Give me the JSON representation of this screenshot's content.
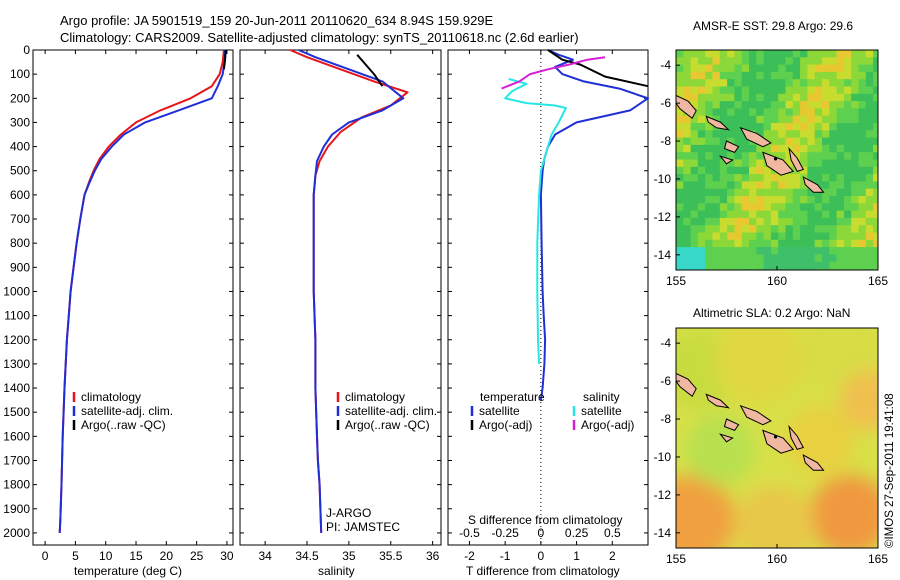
{
  "header": {
    "title_line1": "Argo profile: JA 5901519_159 20-Jun-2011 20110620_634 8.94S 159.929E",
    "title_line2": "Climatology: CARS2009. Satellite-adjusted climatology: synTS_20110618.nc (2.6d earlier)"
  },
  "credit": "©IMOS 27-Sep-2011 19:41:08",
  "colors": {
    "red": "#e8141a",
    "blue": "#1f2fd6",
    "black": "#000000",
    "cyan": "#28e6e6",
    "magenta": "#d620d6"
  },
  "chart_data": [
    {
      "type": "line",
      "id": "temperature",
      "xlabel": "temperature (deg C)",
      "ylabel": "",
      "xlim": [
        -2,
        31
      ],
      "ylim": [
        2050,
        0
      ],
      "xticks": [
        "0",
        "5",
        "10",
        "15",
        "20",
        "25",
        "30"
      ],
      "yticks": [
        "0",
        "100",
        "200",
        "300",
        "400",
        "500",
        "600",
        "700",
        "800",
        "900",
        "1000",
        "1100",
        "1200",
        "1300",
        "1400",
        "1500",
        "1600",
        "1700",
        "1800",
        "1900",
        "2000"
      ],
      "legend": [
        "climatology",
        "satellite-adj. clim.",
        "Argo(..raw -QC)"
      ],
      "legend_position": "lower-right",
      "series": [
        {
          "name": "climatology",
          "color": "red",
          "x": [
            29.5,
            29.3,
            28.8,
            27.5,
            24,
            19,
            15,
            12.5,
            10.5,
            9,
            8,
            7.2,
            6.5,
            5.8,
            5.2,
            4.7,
            4.2,
            3.9,
            3.6,
            3.2,
            2.9,
            2.7,
            2.5,
            2.4
          ],
          "y": [
            0,
            50,
            100,
            150,
            200,
            250,
            300,
            350,
            400,
            450,
            500,
            550,
            600,
            700,
            800,
            900,
            1000,
            1100,
            1200,
            1400,
            1600,
            1800,
            1950,
            2000
          ]
        },
        {
          "name": "satellite-adj. clim.",
          "color": "blue",
          "x": [
            29.7,
            29.6,
            29.3,
            28.5,
            27.5,
            22,
            16.5,
            13,
            11,
            9.3,
            8.2,
            7.3,
            6.5,
            5.8,
            5.2,
            4.7,
            4.2,
            3.9,
            3.6,
            3.2,
            2.9,
            2.7,
            2.5,
            2.4
          ],
          "y": [
            0,
            50,
            100,
            150,
            200,
            250,
            300,
            350,
            400,
            450,
            500,
            550,
            600,
            700,
            800,
            900,
            1000,
            1100,
            1200,
            1400,
            1600,
            1800,
            1950,
            2000
          ]
        },
        {
          "name": "Argo(..raw -QC)",
          "color": "black",
          "x": [
            29.8,
            29.7,
            29.5
          ],
          "y": [
            0,
            40,
            80
          ]
        }
      ]
    },
    {
      "type": "line",
      "id": "salinity",
      "xlabel": "salinity",
      "xlim": [
        33.7,
        36.1
      ],
      "ylim": [
        2050,
        0
      ],
      "xticks": [
        "34",
        "34.5",
        "35",
        "35.5",
        "36"
      ],
      "legend": [
        "climatology",
        "satellite-adj. clim.",
        "Argo(..raw -QC)"
      ],
      "legend_position": "lower-right",
      "annotation": [
        "J-ARGO",
        "PI: JAMSTEC"
      ],
      "series": [
        {
          "name": "climatology",
          "color": "red",
          "x": [
            34.3,
            34.5,
            34.9,
            35.3,
            35.7,
            35.5,
            35.15,
            34.9,
            34.75,
            34.65,
            34.6,
            34.58,
            34.58,
            34.58,
            34.6,
            34.6,
            34.62,
            34.63,
            34.65,
            34.66,
            34.67
          ],
          "y": [
            0,
            30,
            80,
            130,
            175,
            230,
            280,
            340,
            400,
            460,
            520,
            600,
            800,
            1000,
            1200,
            1400,
            1600,
            1700,
            1800,
            1900,
            2000
          ]
        },
        {
          "name": "satellite-adj. clim.",
          "color": "blue",
          "x": [
            34.4,
            34.6,
            35.0,
            35.4,
            35.65,
            35.4,
            35.0,
            34.8,
            34.7,
            34.62,
            34.6,
            34.58,
            34.58,
            34.58,
            34.6,
            34.6,
            34.62,
            34.63,
            34.65,
            34.66,
            34.67
          ],
          "y": [
            0,
            30,
            80,
            130,
            200,
            250,
            300,
            350,
            400,
            460,
            520,
            600,
            800,
            1000,
            1200,
            1400,
            1600,
            1700,
            1800,
            1900,
            2000
          ]
        },
        {
          "name": "Argo(..raw -QC)",
          "color": "black",
          "x": [
            35.1,
            35.2,
            35.3,
            35.4
          ],
          "y": [
            20,
            60,
            100,
            150
          ]
        }
      ]
    },
    {
      "type": "line",
      "id": "difference",
      "xlabel": "T difference from climatology",
      "x2label": "S difference from climatology",
      "xlim": [
        -2.6,
        3.0
      ],
      "ylim": [
        2050,
        0
      ],
      "xticks": [
        "-2",
        "-1",
        "0",
        "1",
        "2"
      ],
      "x2ticks": [
        "-0.5",
        "-0.25",
        "0",
        "0.25",
        "0.5"
      ],
      "legend_temperature": [
        "temperature",
        "satellite",
        "Argo(-adj)"
      ],
      "legend_salinity": [
        "salinity",
        "satellite",
        "Argo(-adj)"
      ],
      "legend_position": "lower-center",
      "series": [
        {
          "name": "satellite (temperature)",
          "color": "blue",
          "x": [
            0.2,
            0.5,
            0.9,
            0.4,
            0.6,
            1.2,
            2.2,
            3.0,
            2.5,
            1.0,
            0.4,
            0.2,
            0.1,
            0.05,
            0,
            0.02,
            0.05,
            0.08,
            0.1,
            0.12,
            0.1,
            0.05,
            0
          ],
          "y": [
            0,
            20,
            40,
            70,
            100,
            130,
            160,
            200,
            250,
            300,
            350,
            400,
            450,
            500,
            600,
            800,
            1000,
            1100,
            1150,
            1200,
            1300,
            1400,
            1450
          ]
        },
        {
          "name": "Argo(-adj) (temperature)",
          "color": "black",
          "x": [
            0.2,
            0.6,
            1.1,
            1.8,
            2.7,
            3.0
          ],
          "y": [
            0,
            40,
            60,
            110,
            140,
            150
          ]
        },
        {
          "name": "satellite (salinity)",
          "color": "cyan",
          "x": [
            -0.9,
            -0.4,
            -0.8,
            -1.0,
            -0.4,
            0.4,
            0.7,
            0.5,
            0.3,
            0.2,
            0.1,
            0,
            -0.05,
            -0.1,
            -0.1,
            -0.08,
            -0.05
          ],
          "y": [
            120,
            140,
            170,
            200,
            220,
            230,
            240,
            300,
            350,
            400,
            450,
            500,
            600,
            800,
            1000,
            1200,
            1300
          ]
        },
        {
          "name": "Argo(-adj) (salinity)",
          "color": "magenta",
          "x": [
            -1.1,
            -0.6,
            -0.3,
            0.2,
            0.8,
            1.3,
            1.8
          ],
          "y": [
            160,
            130,
            100,
            80,
            60,
            40,
            30
          ]
        }
      ]
    },
    {
      "type": "heatmap",
      "id": "sst_map",
      "title": "AMSR-E SST: 29.8 Argo: 29.6",
      "xticks": [
        "155",
        "160",
        "165"
      ],
      "yticks": [
        "-4",
        "-6",
        "-8",
        "-10",
        "-12",
        "-14"
      ],
      "xlim": [
        155,
        165
      ],
      "ylim": [
        -15,
        -3
      ]
    },
    {
      "type": "heatmap",
      "id": "sla_map",
      "title": "Altimetric SLA: 0.2 Argo: NaN",
      "xticks": [
        "155",
        "160",
        "165"
      ],
      "yticks": [
        "-4",
        "-6",
        "-8",
        "-10",
        "-12",
        "-14"
      ],
      "xlim": [
        155,
        165
      ],
      "ylim": [
        -15,
        -3
      ]
    }
  ]
}
